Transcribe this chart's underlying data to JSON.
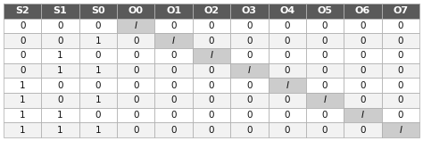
{
  "headers": [
    "S2",
    "S1",
    "S0",
    "O0",
    "O1",
    "O2",
    "O3",
    "O4",
    "O5",
    "O6",
    "O7"
  ],
  "rows": [
    [
      "0",
      "0",
      "0",
      "I",
      "0",
      "0",
      "0",
      "0",
      "0",
      "0",
      "0"
    ],
    [
      "0",
      "0",
      "1",
      "0",
      "I",
      "0",
      "0",
      "0",
      "0",
      "0",
      "0"
    ],
    [
      "0",
      "1",
      "0",
      "0",
      "0",
      "I",
      "0",
      "0",
      "0",
      "0",
      "0"
    ],
    [
      "0",
      "1",
      "1",
      "0",
      "0",
      "0",
      "I",
      "0",
      "0",
      "0",
      "0"
    ],
    [
      "1",
      "0",
      "0",
      "0",
      "0",
      "0",
      "0",
      "I",
      "0",
      "0",
      "0"
    ],
    [
      "1",
      "0",
      "1",
      "0",
      "0",
      "0",
      "0",
      "0",
      "I",
      "0",
      "0"
    ],
    [
      "1",
      "1",
      "0",
      "0",
      "0",
      "0",
      "0",
      "0",
      "0",
      "I",
      "0"
    ],
    [
      "1",
      "1",
      "1",
      "0",
      "0",
      "0",
      "0",
      "0",
      "0",
      "0",
      "I"
    ]
  ],
  "highlight_col_per_row": [
    3,
    4,
    5,
    6,
    7,
    8,
    9,
    10
  ],
  "header_bg": "#5a5a5a",
  "header_fg": "#ffffff",
  "row_bg_even": "#ffffff",
  "row_bg_odd": "#f2f2f2",
  "highlight_bg": "#cccccc",
  "border_color": "#aaaaaa",
  "text_color": "#111111",
  "font_size": 7.5,
  "header_font_size": 8.0
}
